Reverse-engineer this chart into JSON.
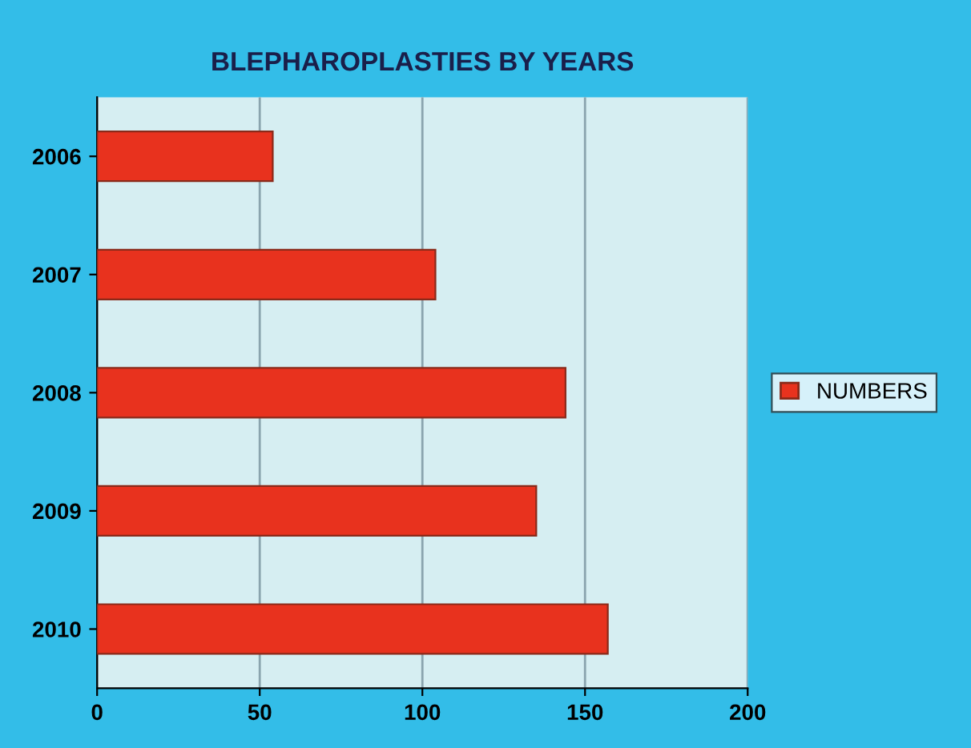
{
  "chart_data": {
    "type": "bar",
    "orientation": "horizontal",
    "title": "BLEPHAROPLASTIES BY YEARS",
    "categories": [
      "2006",
      "2007",
      "2008",
      "2009",
      "2010"
    ],
    "series": [
      {
        "name": "NUMBERS",
        "color": "#e8321e",
        "values": [
          54,
          104,
          144,
          135,
          157
        ]
      }
    ],
    "xlim": [
      0,
      200
    ],
    "xticks": [
      0,
      50,
      100,
      150,
      200
    ],
    "grid": "x",
    "legend": "right"
  }
}
